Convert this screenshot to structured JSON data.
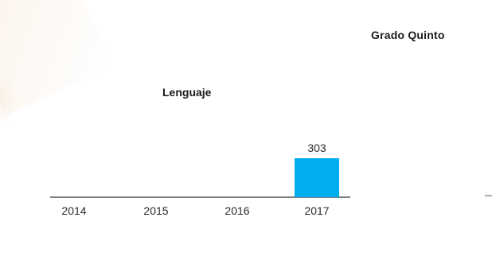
{
  "header": {
    "title": "Grado Quinto"
  },
  "colors": {
    "bar": "#00AEEF",
    "axis": "#555555"
  },
  "chart_data": {
    "type": "bar",
    "title": "Lenguaje",
    "xlabel": "",
    "ylabel": "",
    "categories": [
      "2014",
      "2015",
      "2016",
      "2017"
    ],
    "values": [
      null,
      null,
      null,
      303
    ],
    "data_labels": [
      "",
      "",
      "",
      "303"
    ],
    "grid": false,
    "legend": "none"
  }
}
